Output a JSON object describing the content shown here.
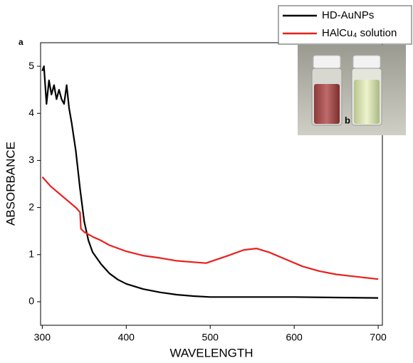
{
  "chart_data": {
    "type": "line",
    "x_label": "WAVELENGTH",
    "y_label": "ABSORBANCE",
    "panel_label": "a",
    "inset_label": "b",
    "xlim": [
      298,
      705
    ],
    "xticks": [
      300,
      400,
      500,
      600,
      700
    ],
    "ylim": [
      -0.5,
      5.5
    ],
    "yticks": [
      0,
      1,
      2,
      3,
      4,
      5
    ],
    "legend": "top-right",
    "series": [
      {
        "name": "HD-AuNPs",
        "color": "#000000",
        "x": [
          300,
          302,
          305,
          308,
          311,
          314,
          317,
          320,
          323,
          326,
          329,
          332,
          335,
          340,
          345,
          350,
          355,
          360,
          370,
          380,
          390,
          400,
          420,
          440,
          460,
          480,
          500,
          550,
          600,
          650,
          700
        ],
        "values": [
          4.9,
          5.0,
          4.2,
          4.7,
          4.4,
          4.6,
          4.3,
          4.5,
          4.3,
          4.2,
          4.6,
          4.1,
          3.8,
          3.2,
          2.4,
          1.7,
          1.3,
          1.05,
          0.8,
          0.6,
          0.47,
          0.38,
          0.27,
          0.2,
          0.15,
          0.12,
          0.1,
          0.1,
          0.1,
          0.09,
          0.08
        ]
      },
      {
        "name": "HAlCu₄ solution",
        "color": "#e8201c",
        "x": [
          300,
          310,
          320,
          330,
          340,
          345,
          346,
          350,
          360,
          370,
          380,
          400,
          420,
          440,
          460,
          480,
          495,
          500,
          520,
          540,
          555,
          570,
          590,
          610,
          630,
          650,
          670,
          700
        ],
        "values": [
          2.65,
          2.45,
          2.3,
          2.15,
          2.0,
          1.9,
          1.55,
          1.48,
          1.38,
          1.3,
          1.2,
          1.07,
          0.98,
          0.93,
          0.87,
          0.84,
          0.82,
          0.85,
          0.97,
          1.1,
          1.13,
          1.05,
          0.9,
          0.75,
          0.65,
          0.58,
          0.54,
          0.48
        ]
      }
    ]
  }
}
